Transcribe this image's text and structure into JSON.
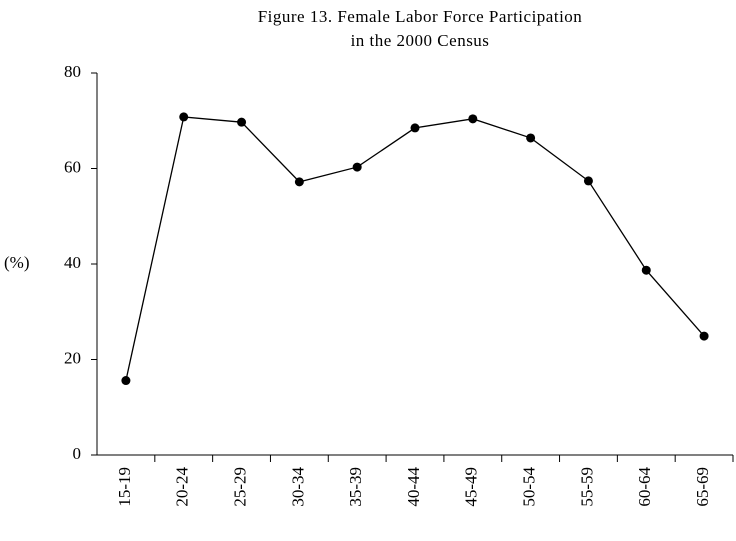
{
  "chart_data": {
    "type": "line",
    "title": [
      "Figure 13. Female Labor Force Participation",
      "in the 2000 Census"
    ],
    "y_label": "(%)",
    "categories": [
      "15-19",
      "20-24",
      "25-29",
      "30-34",
      "35-39",
      "40-44",
      "45-49",
      "50-54",
      "55-59",
      "60-64",
      "65-69"
    ],
    "values": [
      15.6,
      70.8,
      69.7,
      57.2,
      60.3,
      68.5,
      70.4,
      66.4,
      57.4,
      38.7,
      24.9
    ],
    "color": "#000000",
    "ylim": [
      0,
      80
    ],
    "yticks": [
      0,
      20,
      40,
      60,
      80
    ],
    "grid": false
  }
}
